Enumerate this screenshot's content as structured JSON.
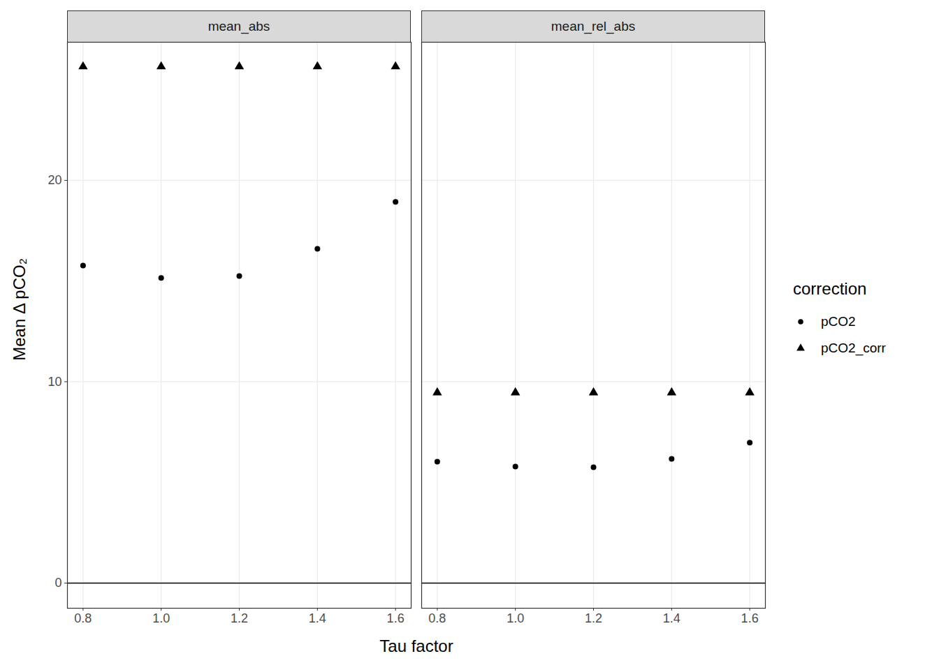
{
  "chart_data": {
    "type": "scatter",
    "x_label": "Tau factor",
    "y_label": "Mean Δ pCO₂",
    "legend_title": "correction",
    "legend": "right",
    "grid": true,
    "x": [
      0.8,
      1.0,
      1.2,
      1.4,
      1.6
    ],
    "xlim": [
      0.76,
      1.64
    ],
    "xticks": [
      {
        "value": 0.8,
        "label": "0.8"
      },
      {
        "value": 1,
        "label": "1.0"
      },
      {
        "value": 1.2,
        "label": "1.2"
      },
      {
        "value": 1.4,
        "label": "1.4"
      },
      {
        "value": 1.6,
        "label": "1.6"
      }
    ],
    "ylim": [
      -1.25,
      26.86
    ],
    "yticks": [
      0,
      10,
      20
    ],
    "reference_line": 0,
    "panels": [
      {
        "title": "mean_abs",
        "series": [
          {
            "name": "pCO2",
            "color": "#000000",
            "marker": "circle",
            "values": [
              15.77,
              15.15,
              15.25,
              16.6,
              18.93
            ]
          },
          {
            "name": "pCO2_corr",
            "color": "#000000",
            "marker": "triangle",
            "values": [
              25.65,
              25.65,
              25.65,
              25.65,
              25.65
            ]
          }
        ]
      },
      {
        "title": "mean_rel_abs",
        "series": [
          {
            "name": "pCO2",
            "color": "#000000",
            "marker": "circle",
            "values": [
              6.03,
              5.79,
              5.75,
              6.17,
              6.97
            ]
          },
          {
            "name": "pCO2_corr",
            "color": "#000000",
            "marker": "triangle",
            "values": [
              9.46,
              9.46,
              9.46,
              9.46,
              9.46
            ]
          }
        ]
      }
    ]
  }
}
